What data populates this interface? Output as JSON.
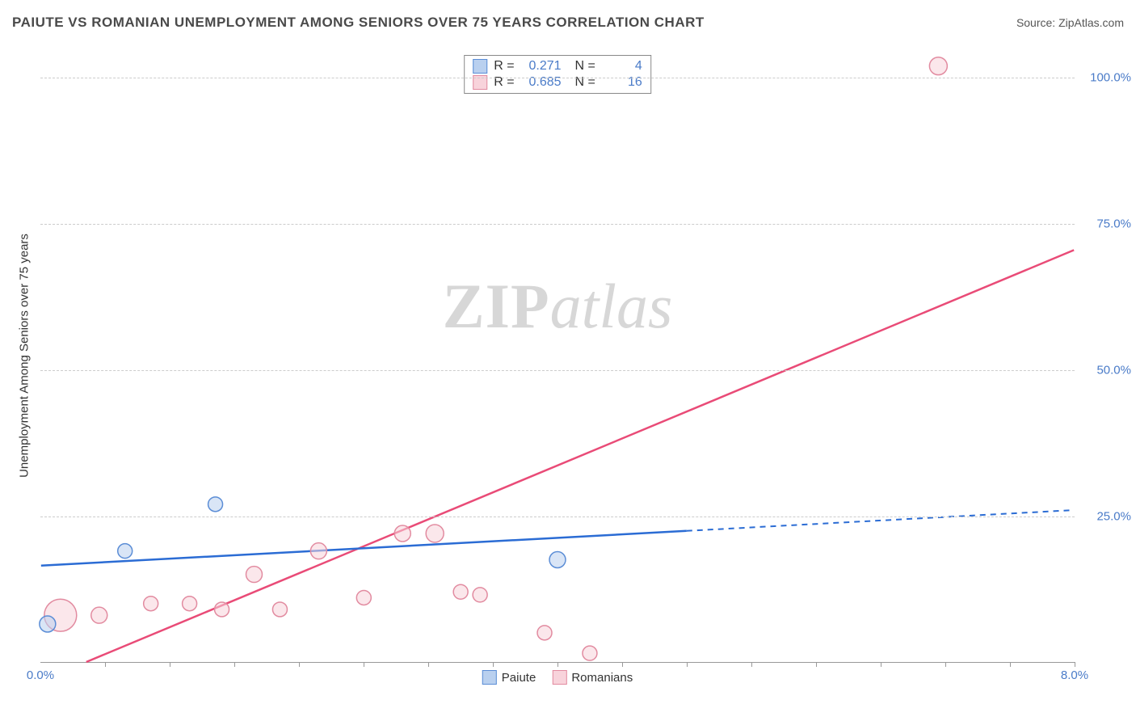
{
  "title": "PAIUTE VS ROMANIAN UNEMPLOYMENT AMONG SENIORS OVER 75 YEARS CORRELATION CHART",
  "source": "Source: ZipAtlas.com",
  "watermark_zip": "ZIP",
  "watermark_atlas": "atlas",
  "y_axis_label": "Unemployment Among Seniors over 75 years",
  "colors": {
    "blue_fill": "#b9d0ef",
    "blue_stroke": "#5b8dd6",
    "blue_line": "#2b6cd4",
    "pink_fill": "#f8d3db",
    "pink_stroke": "#e28ba0",
    "pink_line": "#e94b77",
    "tick_text": "#4a7bc8",
    "grid": "#cccccc",
    "axis": "#999999",
    "title_text": "#4a4a4a"
  },
  "xlim": [
    0,
    8
  ],
  "ylim": [
    0,
    105
  ],
  "y_ticks": [
    {
      "v": 25,
      "label": "25.0%"
    },
    {
      "v": 50,
      "label": "50.0%"
    },
    {
      "v": 75,
      "label": "75.0%"
    },
    {
      "v": 100,
      "label": "100.0%"
    }
  ],
  "x_ticks_minor": [
    0.5,
    1,
    1.5,
    2,
    2.5,
    3,
    3.5,
    4,
    4.5,
    5,
    5.5,
    6,
    6.5,
    7,
    7.5,
    8
  ],
  "x_tick_labels": [
    {
      "v": 0,
      "label": "0.0%"
    },
    {
      "v": 8,
      "label": "8.0%"
    }
  ],
  "legend_top": [
    {
      "swatch": "blue",
      "r_label": "R =",
      "r": "0.271",
      "n_label": "N =",
      "n": "4"
    },
    {
      "swatch": "pink",
      "r_label": "R =",
      "r": "0.685",
      "n_label": "N =",
      "n": "16"
    }
  ],
  "legend_bottom": [
    {
      "swatch": "blue",
      "label": "Paiute"
    },
    {
      "swatch": "pink",
      "label": "Romanians"
    }
  ],
  "series": {
    "paiute": {
      "color_key": "blue",
      "points": [
        {
          "x": 0.05,
          "y": 6.5,
          "r": 10
        },
        {
          "x": 0.65,
          "y": 19,
          "r": 9
        },
        {
          "x": 1.35,
          "y": 27,
          "r": 9
        },
        {
          "x": 4.0,
          "y": 17.5,
          "r": 10
        }
      ],
      "trend": {
        "x1": 0,
        "y1": 16.5,
        "x2": 8,
        "y2": 26,
        "solid_until_x": 5.0
      }
    },
    "romanians": {
      "color_key": "pink",
      "points": [
        {
          "x": 0.15,
          "y": 8,
          "r": 20
        },
        {
          "x": 0.45,
          "y": 8,
          "r": 10
        },
        {
          "x": 0.85,
          "y": 10,
          "r": 9
        },
        {
          "x": 1.15,
          "y": 10,
          "r": 9
        },
        {
          "x": 1.4,
          "y": 9,
          "r": 9
        },
        {
          "x": 1.65,
          "y": 15,
          "r": 10
        },
        {
          "x": 1.85,
          "y": 9,
          "r": 9
        },
        {
          "x": 2.15,
          "y": 19,
          "r": 10
        },
        {
          "x": 2.5,
          "y": 11,
          "r": 9
        },
        {
          "x": 2.8,
          "y": 22,
          "r": 10
        },
        {
          "x": 3.05,
          "y": 22,
          "r": 11
        },
        {
          "x": 3.25,
          "y": 12,
          "r": 9
        },
        {
          "x": 3.4,
          "y": 11.5,
          "r": 9
        },
        {
          "x": 3.9,
          "y": 5,
          "r": 9
        },
        {
          "x": 4.25,
          "y": 1.5,
          "r": 9
        },
        {
          "x": 6.95,
          "y": 102,
          "r": 11
        }
      ],
      "trend": {
        "x1": 0.35,
        "y1": 0,
        "x2": 8,
        "y2": 70.5,
        "solid_until_x": 8
      }
    }
  }
}
